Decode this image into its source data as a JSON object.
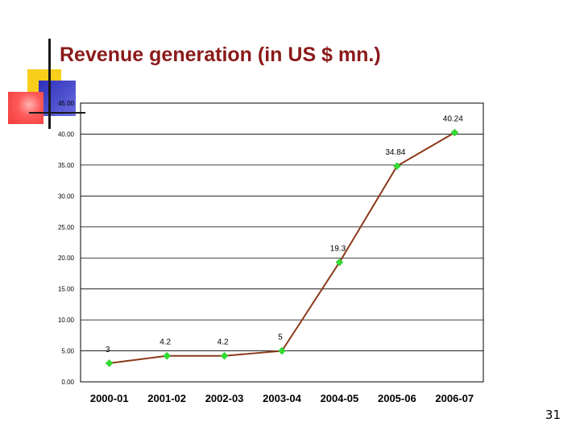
{
  "slide": {
    "title": "Revenue generation (in US $ mn.)",
    "number": "31"
  },
  "colors": {
    "title": "#8b1a1a",
    "line": "#8b3a1a",
    "marker": "#33dd33",
    "grid": "#000000"
  },
  "chart_data": {
    "type": "line",
    "title": "",
    "xlabel": "",
    "ylabel": "",
    "categories": [
      "2000-01",
      "2001-02",
      "2002-03",
      "2003-04",
      "2004-05",
      "2005-06",
      "2006-07"
    ],
    "values": [
      3,
      4.2,
      4.2,
      5,
      19.3,
      34.84,
      40.24
    ],
    "data_labels": [
      "3",
      "4.2",
      "4.2",
      "5",
      "19.3",
      "34.84",
      "40.24"
    ],
    "ylim": [
      0,
      45
    ],
    "yticks": [
      "0.00",
      "5.00",
      "10.00",
      "15.00",
      "20.00",
      "25.00",
      "30.00",
      "35.00",
      "40.00",
      "45.00"
    ],
    "grid": true,
    "legend": "none"
  }
}
